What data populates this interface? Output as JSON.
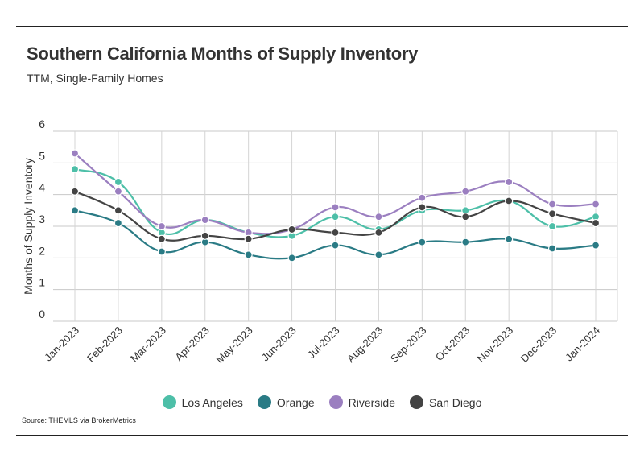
{
  "header": {
    "title": "Southern California Months of Supply Inventory",
    "subtitle": "TTM, Single-Family Homes"
  },
  "footer": {
    "source": "Source:  THEMLS via BrokerMetrics"
  },
  "chart_data": {
    "type": "line",
    "title": "Southern California Months of Supply Inventory",
    "subtitle": "TTM, Single-Family Homes",
    "xlabel": "",
    "ylabel": "Months of Supply Inventory",
    "ylim": [
      0,
      6
    ],
    "yticks": [
      0,
      1,
      2,
      3,
      4,
      5,
      6
    ],
    "grid": true,
    "legend": "bottom-center",
    "categories": [
      "Jan-2023",
      "Feb-2023",
      "Mar-2023",
      "Apr-2023",
      "May-2023",
      "Jun-2023",
      "Jul-2023",
      "Aug-2023",
      "Sep-2023",
      "Oct-2023",
      "Nov-2023",
      "Dec-2023",
      "Jan-2024"
    ],
    "series": [
      {
        "name": "Los Angeles",
        "color": "#4dbfa8",
        "values": [
          4.8,
          4.4,
          2.8,
          3.2,
          2.8,
          2.7,
          3.3,
          2.9,
          3.5,
          3.5,
          3.8,
          3.0,
          3.3
        ]
      },
      {
        "name": "Orange",
        "color": "#2a7b85",
        "values": [
          3.5,
          3.1,
          2.2,
          2.5,
          2.1,
          2.0,
          2.4,
          2.1,
          2.5,
          2.5,
          2.6,
          2.3,
          2.4
        ]
      },
      {
        "name": "Riverside",
        "color": "#9b7fc0",
        "values": [
          5.3,
          4.1,
          3.0,
          3.2,
          2.8,
          2.9,
          3.6,
          3.3,
          3.9,
          4.1,
          4.4,
          3.7,
          3.7
        ]
      },
      {
        "name": "San Diego",
        "color": "#444444",
        "values": [
          4.1,
          3.5,
          2.6,
          2.7,
          2.6,
          2.9,
          2.8,
          2.8,
          3.6,
          3.3,
          3.8,
          3.4,
          3.1
        ]
      }
    ]
  }
}
